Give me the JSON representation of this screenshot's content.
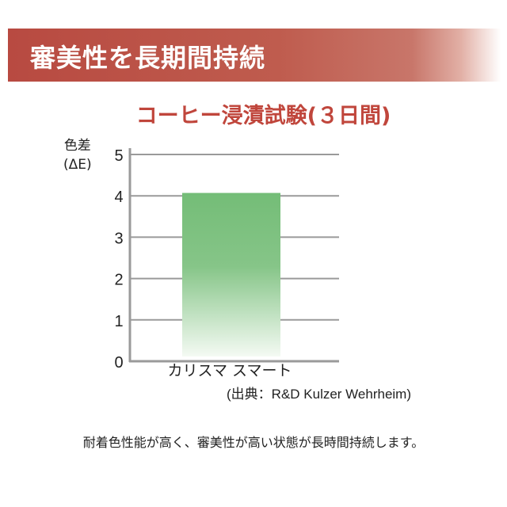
{
  "banner": {
    "title": "審美性を長期間持続"
  },
  "chart_data": {
    "type": "bar",
    "title": "コーヒー浸漬試験(３日間)",
    "ylabel_line1": "色差",
    "ylabel_line2": "(ΔE)",
    "xlabel": "",
    "categories": [
      "カリスマ スマート"
    ],
    "values": [
      4.07
    ],
    "ylim": [
      0,
      5
    ],
    "yticks": [
      "0",
      "1",
      "2",
      "3",
      "4",
      "5"
    ],
    "grid": true,
    "bar_color": "#74bd77",
    "source": "(出典：R&D Kulzer Wehrheim)"
  },
  "caption": "耐着色性能が高く、審美性が高い状態が長時間持続します。"
}
